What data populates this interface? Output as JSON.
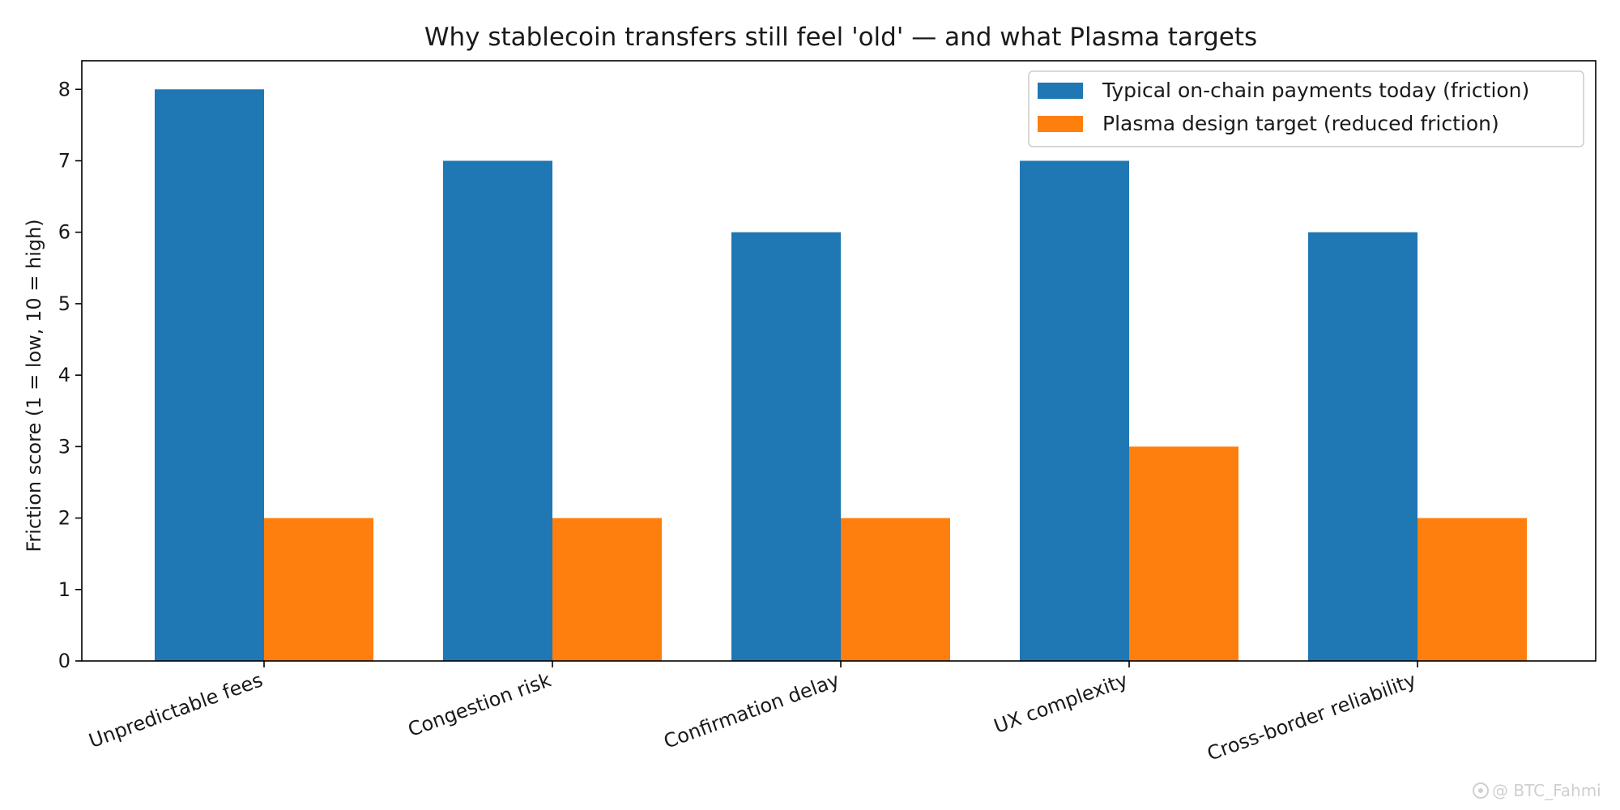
{
  "chart_data": {
    "type": "bar",
    "title": "Why stablecoin transfers still feel 'old' — and what Plasma targets",
    "xlabel": "",
    "ylabel": "Friction score (1 = low, 10 = high)",
    "categories": [
      "Unpredictable fees",
      "Congestion risk",
      "Confirmation delay",
      "UX complexity",
      "Cross-border reliability"
    ],
    "series": [
      {
        "name": "Typical on-chain payments today (friction)",
        "values": [
          8,
          7,
          6,
          7,
          6
        ],
        "color": "#1f77b4"
      },
      {
        "name": "Plasma design target (reduced friction)",
        "values": [
          2,
          2,
          2,
          3,
          2
        ],
        "color": "#ff7f0e"
      }
    ],
    "ylim": [
      0,
      8.4
    ],
    "yticks": [
      0,
      1,
      2,
      3,
      4,
      5,
      6,
      7,
      8
    ],
    "legend_position": "top-right",
    "grid": false
  },
  "watermark": {
    "icon": "gear-like-logo-icon",
    "text": "@ BTC_Fahmi"
  }
}
